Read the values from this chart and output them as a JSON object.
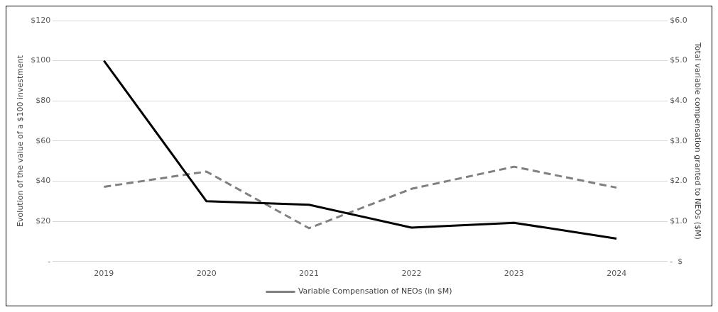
{
  "chart_data": {
    "type": "line",
    "categories": [
      "2019",
      "2020",
      "2021",
      "2022",
      "2023",
      "2024"
    ],
    "ylabel": "Evolution of the value of a $100 investment",
    "y2label": "Total variable compensation granted to NEOs ($M)",
    "series": [
      {
        "color": "#000000",
        "values": [
          100,
          30,
          28.3,
          16.9,
          19.3,
          11.4
        ],
        "line_style": "solid"
      },
      {
        "name": "Variable Compensation of NEOs (in $M)",
        "color": "#808080",
        "values": [
          1.86,
          2.24,
          0.83,
          1.81,
          2.36,
          1.84
        ],
        "axis": "y2",
        "line_style": "dashed"
      }
    ],
    "ylim": [
      0,
      120
    ],
    "yticks": [
      {
        "value": 0,
        "label": "-"
      },
      {
        "value": 20,
        "label": "$20"
      },
      {
        "value": 40,
        "label": "$40"
      },
      {
        "value": 60,
        "label": "$60"
      },
      {
        "value": 80,
        "label": "$80"
      },
      {
        "value": 100,
        "label": "$100"
      },
      {
        "value": 120,
        "label": "$120"
      }
    ],
    "y2lim": [
      0,
      6
    ],
    "y2ticks": [
      {
        "value": 0,
        "label": "-  $"
      },
      {
        "value": 1,
        "label": "$1.0"
      },
      {
        "value": 2,
        "label": "$2.0"
      },
      {
        "value": 3,
        "label": "$3.0"
      },
      {
        "value": 4,
        "label": "$4.0"
      },
      {
        "value": 5,
        "label": "$5.0"
      },
      {
        "value": 6,
        "label": "$6.0"
      }
    ],
    "grid": "y",
    "legend": "bottom",
    "marker": "none"
  }
}
